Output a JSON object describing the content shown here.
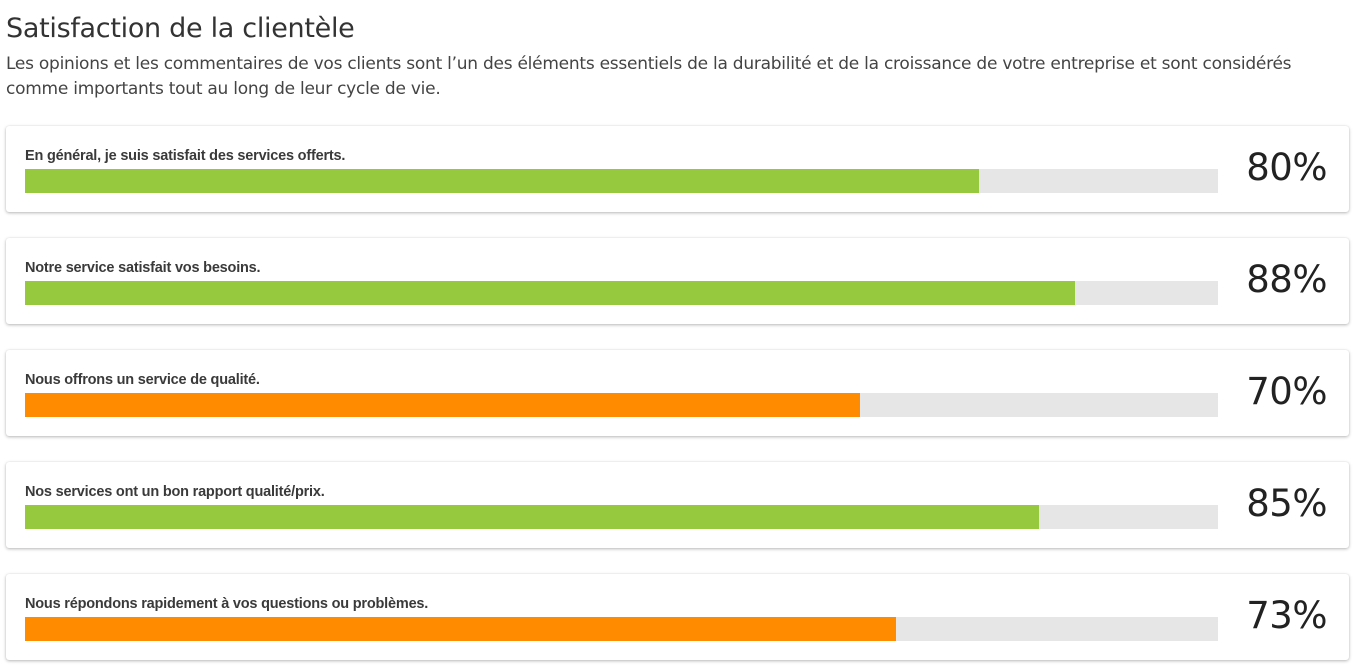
{
  "header": {
    "title": "Satisfaction de la clientèle",
    "description": "Les opinions et les commentaires de vos clients sont l’un des éléments essentiels de la durabilité et de la croissance de votre entreprise et sont considérés comme importants tout au long de leur cycle de vie."
  },
  "colors": {
    "high": "#96c93d",
    "medium": "#ff8c00",
    "track": "#e6e6e6"
  },
  "items": [
    {
      "label": "En général, je suis satisfait des services offerts.",
      "value": 80,
      "value_text": "80%",
      "level": "high"
    },
    {
      "label": "Notre service satisfait vos besoins.",
      "value": 88,
      "value_text": "88%",
      "level": "high"
    },
    {
      "label": "Nous offrons un service de qualité.",
      "value": 70,
      "value_text": "70%",
      "level": "medium"
    },
    {
      "label": "Nos services ont un bon rapport qualité/prix.",
      "value": 85,
      "value_text": "85%",
      "level": "high"
    },
    {
      "label": "Nous répondons rapidement à vos questions ou problèmes.",
      "value": 73,
      "value_text": "73%",
      "level": "medium"
    }
  ]
}
